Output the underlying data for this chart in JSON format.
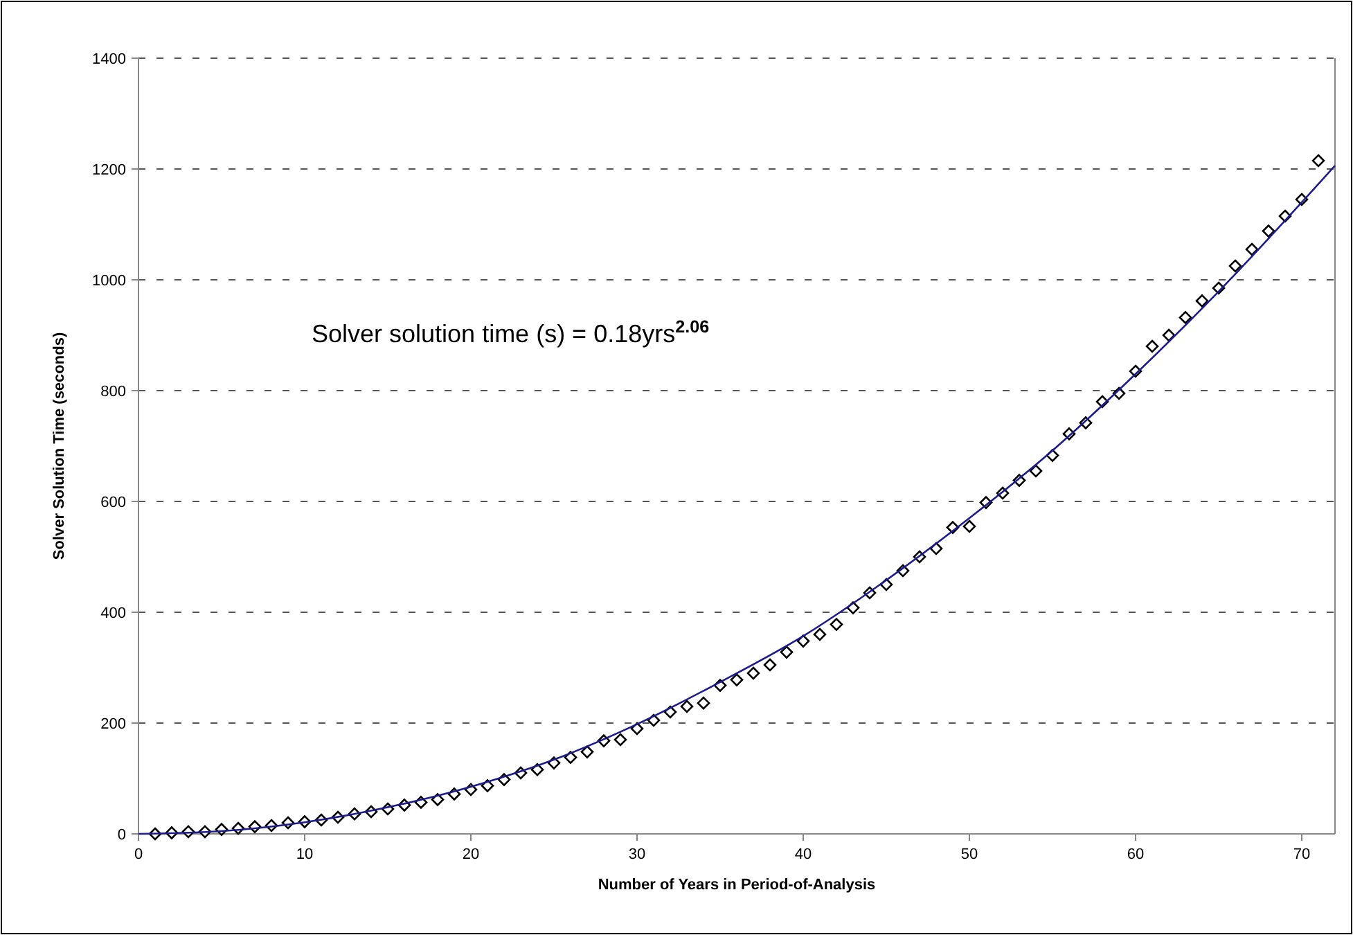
{
  "chart_data": {
    "type": "scatter",
    "xlabel": "Number of Years in Period-of-Analysis",
    "ylabel": "Solver Solution Time (seconds)",
    "annotations": [
      "Solver solution time (s) = 0.18yrs$^{2.06}$"
    ],
    "xlim": [
      0,
      72
    ],
    "xticks": [
      0,
      10,
      20,
      30,
      40,
      50,
      60,
      70
    ],
    "ylim": [
      0,
      1400
    ],
    "yticks": [
      0,
      200,
      400,
      600,
      800,
      1000,
      1200,
      1400
    ],
    "grid": "y",
    "marker": "diamond",
    "series": [
      {
        "type": "scatter",
        "color": "#000000",
        "x": [
          1,
          2,
          3,
          4,
          5,
          6,
          7,
          8,
          9,
          10,
          11,
          12,
          13,
          14,
          15,
          16,
          17,
          18,
          19,
          20,
          21,
          22,
          23,
          24,
          25,
          26,
          27,
          28,
          29,
          30,
          31,
          32,
          33,
          34,
          35,
          36,
          37,
          38,
          39,
          40,
          41,
          42,
          43,
          44,
          45,
          46,
          47,
          48,
          49,
          50,
          51,
          52,
          53,
          54,
          55,
          56,
          57,
          58,
          59,
          60,
          61,
          62,
          63,
          64,
          65,
          66,
          67,
          68,
          69,
          70,
          71
        ],
        "values": [
          0,
          2,
          4,
          4,
          8,
          10,
          13,
          15,
          20,
          22,
          25,
          30,
          36,
          40,
          45,
          52,
          57,
          62,
          72,
          80,
          87,
          98,
          110,
          116,
          128,
          138,
          148,
          168,
          170,
          190,
          205,
          220,
          230,
          236,
          268,
          278,
          290,
          305,
          328,
          348,
          360,
          378,
          408,
          435,
          450,
          475,
          500,
          515,
          553,
          555,
          598,
          615,
          638,
          655,
          683,
          722,
          742,
          780,
          795,
          835,
          880,
          900,
          932,
          962,
          985,
          1025,
          1055,
          1088,
          1115,
          1145,
          1215
        ]
      },
      {
        "type": "line",
        "color": "#1c1c8c",
        "line_style": "solid",
        "marker": "none",
        "x": [
          0,
          5,
          10,
          15,
          20,
          25,
          30,
          35,
          40,
          45,
          50,
          55,
          60,
          65,
          72
        ],
        "values": [
          0,
          5,
          21,
          48,
          85,
          134,
          198,
          274,
          357,
          458,
          570,
          692,
          830,
          979,
          1206
        ]
      }
    ]
  }
}
